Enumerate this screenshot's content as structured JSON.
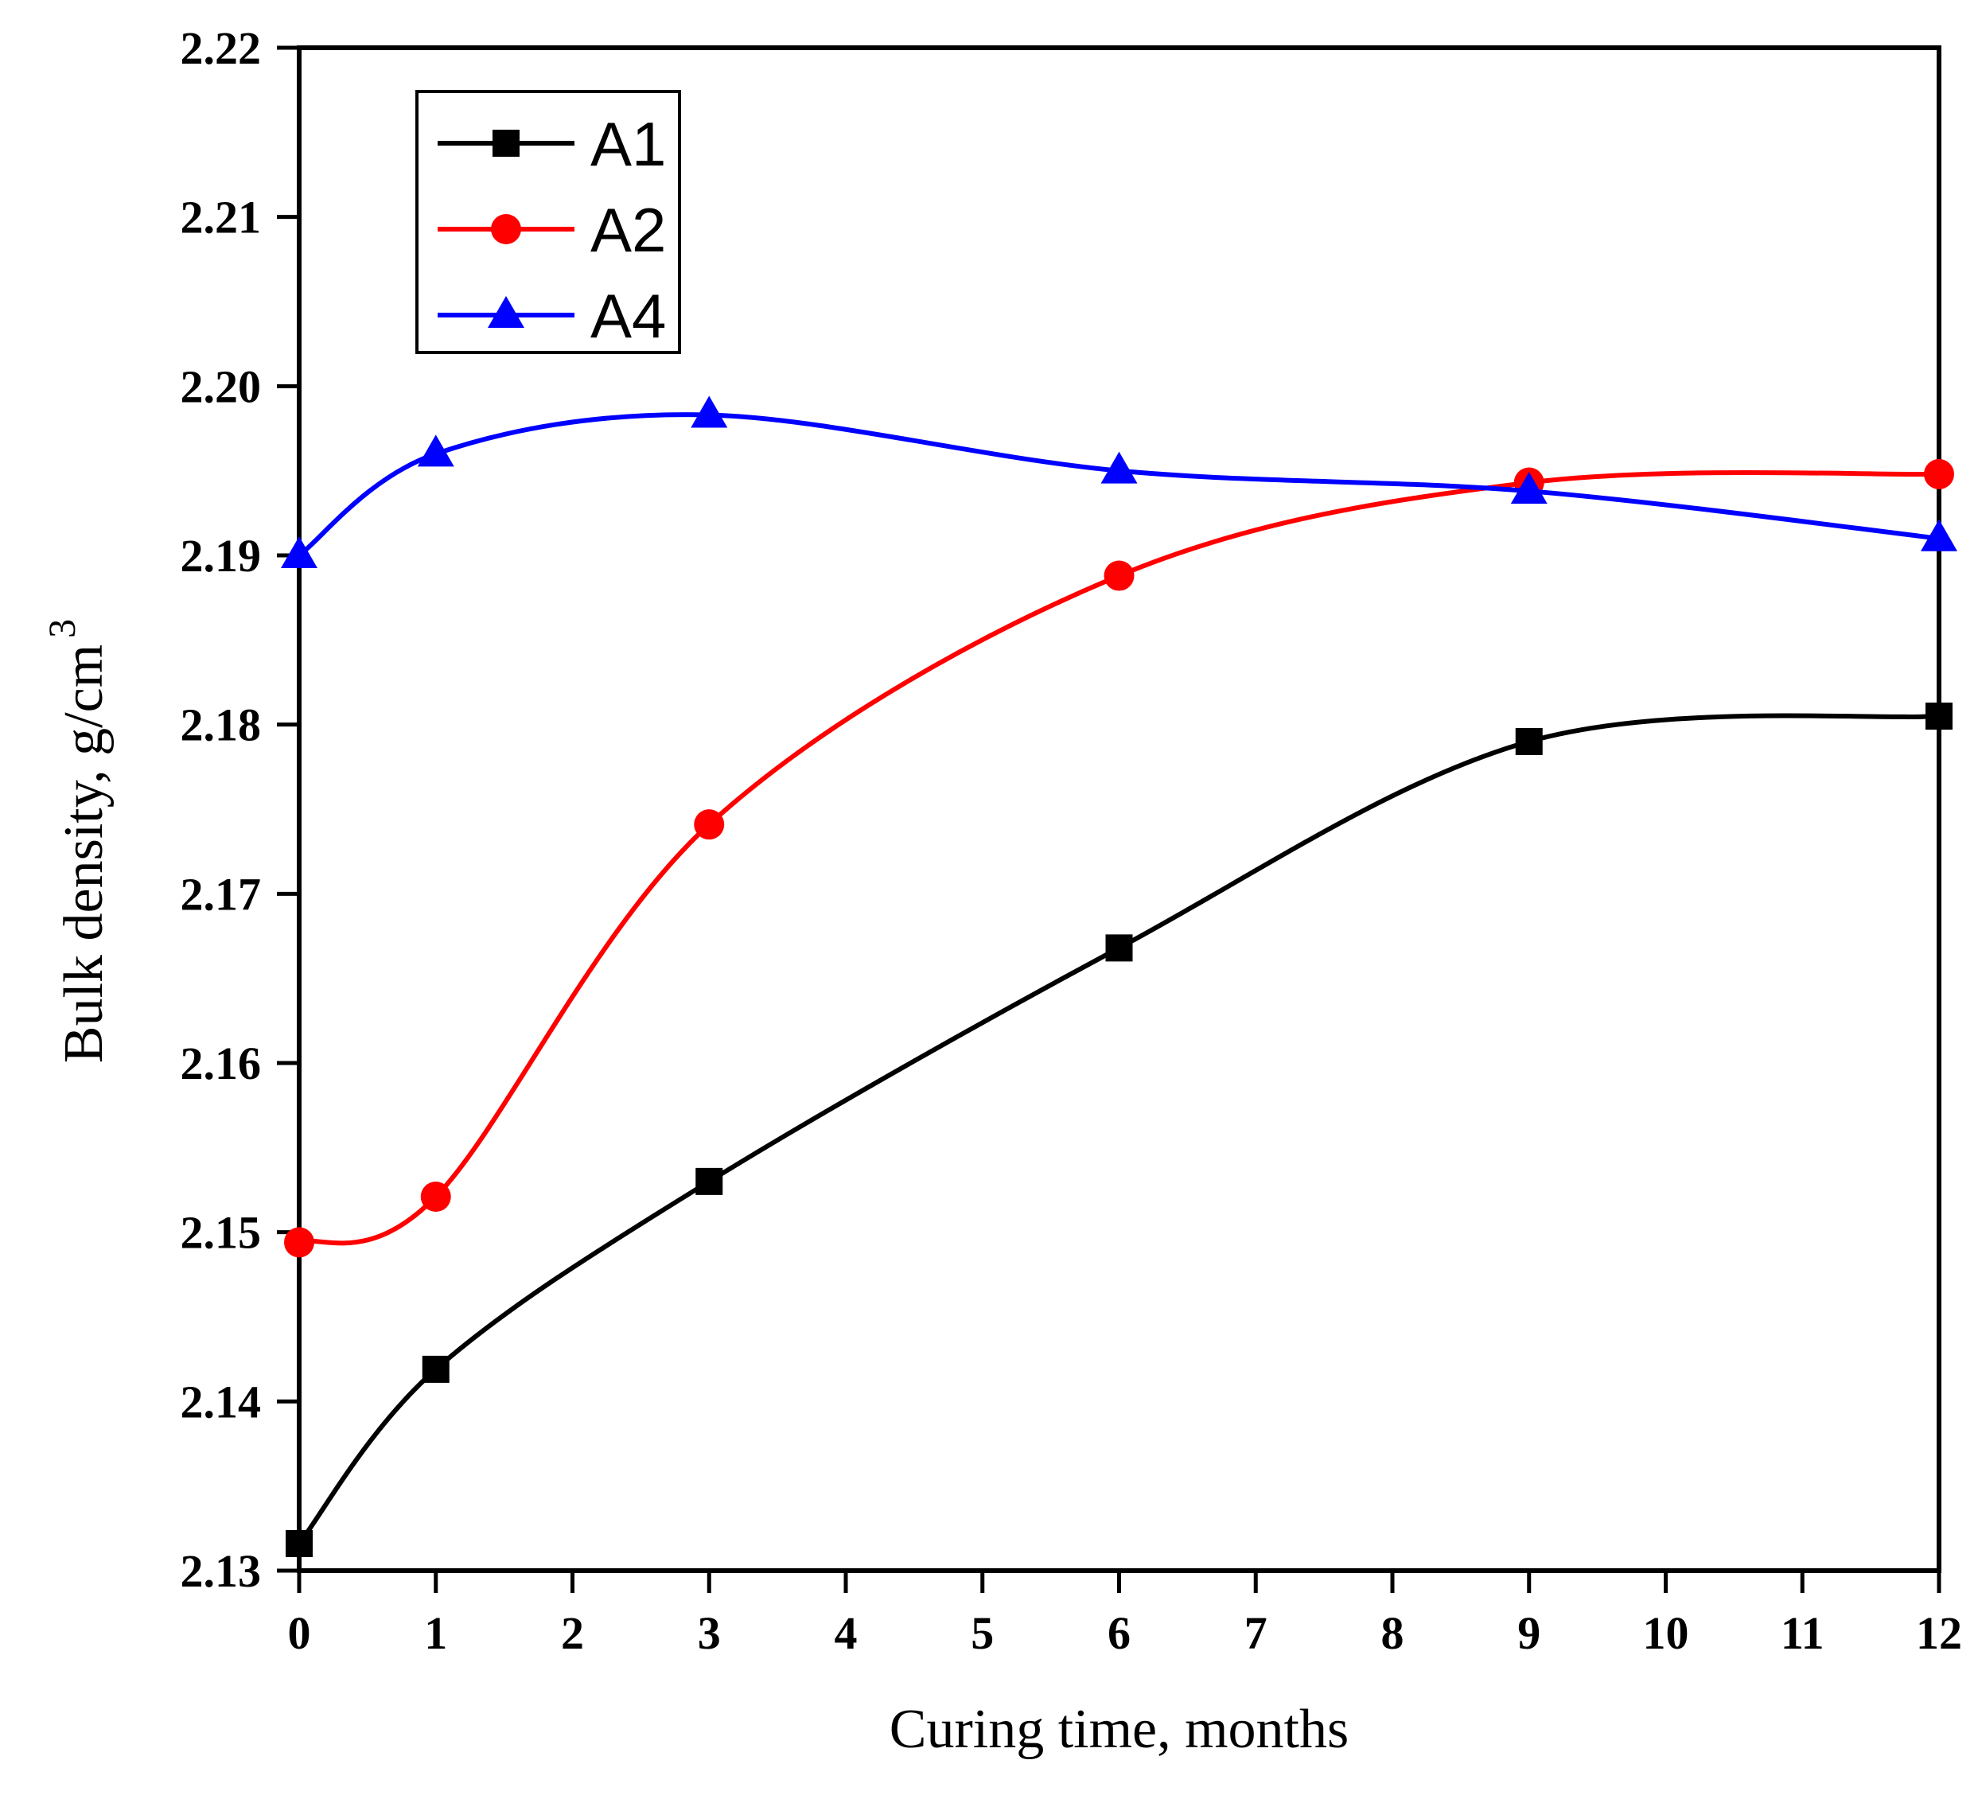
{
  "chart_data": {
    "type": "line",
    "title": "",
    "xlabel": "Curing time, months",
    "ylabel": "Bulk density, g/cm",
    "ylabel_superscript": "3",
    "xlim": [
      0,
      12
    ],
    "ylim": [
      2.13,
      2.22
    ],
    "xticks": [
      0,
      1,
      2,
      3,
      4,
      5,
      6,
      7,
      8,
      9,
      10,
      11,
      12
    ],
    "xtick_labels": [
      "0",
      "1",
      "2",
      "3",
      "4",
      "5",
      "6",
      "7",
      "8",
      "9",
      "10",
      "11",
      "12"
    ],
    "yticks": [
      2.13,
      2.14,
      2.15,
      2.16,
      2.17,
      2.18,
      2.19,
      2.2,
      2.21,
      2.22
    ],
    "ytick_labels": [
      "2.13",
      "2.14",
      "2.15",
      "2.16",
      "2.17",
      "2.18",
      "2.19",
      "2.20",
      "2.21",
      "2.22"
    ],
    "grid": false,
    "legend_position": "top-left",
    "x": [
      0,
      1,
      3,
      6,
      9,
      12
    ],
    "series": [
      {
        "name": "A1",
        "color": "#000000",
        "marker": "square",
        "values": [
          2.1316,
          2.1419,
          2.153,
          2.1668,
          2.179,
          2.1805
        ]
      },
      {
        "name": "A2",
        "color": "#ff0000",
        "marker": "circle",
        "values": [
          2.1494,
          2.1521,
          2.1741,
          2.1888,
          2.1943,
          2.1948
        ]
      },
      {
        "name": "A4",
        "color": "#0000ff",
        "marker": "triangle",
        "values": [
          2.19,
          2.196,
          2.1983,
          2.195,
          2.1938,
          2.191
        ]
      }
    ]
  }
}
